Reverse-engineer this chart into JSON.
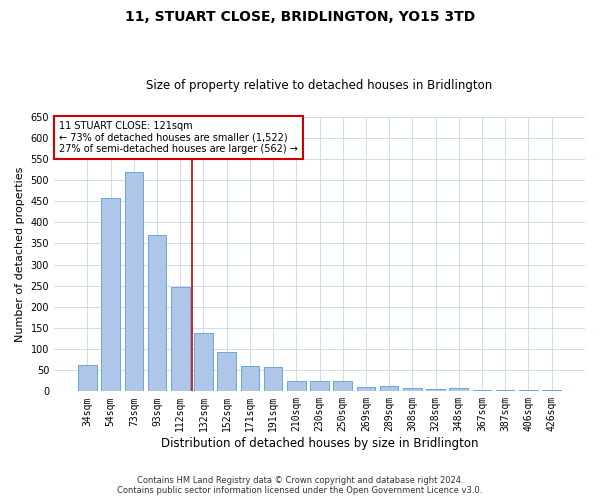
{
  "title": "11, STUART CLOSE, BRIDLINGTON, YO15 3TD",
  "subtitle": "Size of property relative to detached houses in Bridlington",
  "xlabel": "Distribution of detached houses by size in Bridlington",
  "ylabel": "Number of detached properties",
  "categories": [
    "34sqm",
    "54sqm",
    "73sqm",
    "93sqm",
    "112sqm",
    "132sqm",
    "152sqm",
    "171sqm",
    "191sqm",
    "210sqm",
    "230sqm",
    "250sqm",
    "269sqm",
    "289sqm",
    "308sqm",
    "328sqm",
    "348sqm",
    "367sqm",
    "387sqm",
    "406sqm",
    "426sqm"
  ],
  "values": [
    62,
    457,
    519,
    370,
    247,
    138,
    92,
    61,
    57,
    25,
    25,
    25,
    11,
    12,
    7,
    5,
    9,
    3,
    4,
    3,
    3
  ],
  "bar_color": "#aec6e8",
  "bar_edge_color": "#5a9fd4",
  "grid_color": "#c8d8e8",
  "background_color": "#ffffff",
  "annotation_text_line1": "11 STUART CLOSE: 121sqm",
  "annotation_text_line2": "← 73% of detached houses are smaller (1,522)",
  "annotation_text_line3": "27% of semi-detached houses are larger (562) →",
  "annotation_box_color": "#ffffff",
  "annotation_box_edge_color": "#cc0000",
  "vertical_line_color": "#cc0000",
  "ylim": [
    0,
    650
  ],
  "yticks": [
    0,
    50,
    100,
    150,
    200,
    250,
    300,
    350,
    400,
    450,
    500,
    550,
    600,
    650
  ],
  "footer_line1": "Contains HM Land Registry data © Crown copyright and database right 2024.",
  "footer_line2": "Contains public sector information licensed under the Open Government Licence v3.0.",
  "title_fontsize": 10,
  "subtitle_fontsize": 8.5,
  "xlabel_fontsize": 8.5,
  "ylabel_fontsize": 8,
  "footer_fontsize": 6,
  "annotation_fontsize": 7,
  "tick_fontsize": 7
}
